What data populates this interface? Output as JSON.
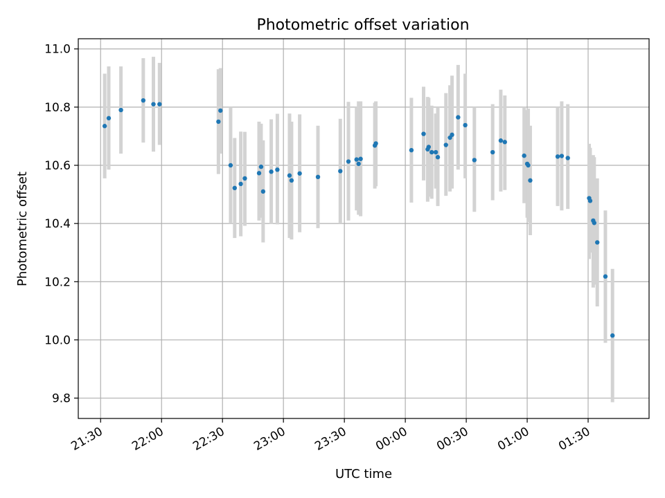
{
  "chart_data": {
    "type": "scatter",
    "title": "Photometric offset variation",
    "xlabel": "UTC time",
    "ylabel": "Photometric offset",
    "x_unit": "minutes from 00:00 UTC (negative = previous day)",
    "xlim": [
      -161,
      120
    ],
    "ylim": [
      9.73,
      11.035
    ],
    "grid": true,
    "legend": "none",
    "x_ticks": [
      {
        "value": -150,
        "label": "21:30"
      },
      {
        "value": -120,
        "label": "22:00"
      },
      {
        "value": -90,
        "label": "22:30"
      },
      {
        "value": -60,
        "label": "23:00"
      },
      {
        "value": -30,
        "label": "23:30"
      },
      {
        "value": 0,
        "label": "00:00"
      },
      {
        "value": 30,
        "label": "00:30"
      },
      {
        "value": 60,
        "label": "01:00"
      },
      {
        "value": 90,
        "label": "01:30"
      }
    ],
    "y_ticks": [
      {
        "value": 9.8,
        "label": "9.8"
      },
      {
        "value": 10.0,
        "label": "10.0"
      },
      {
        "value": 10.2,
        "label": "10.2"
      },
      {
        "value": 10.4,
        "label": "10.4"
      },
      {
        "value": 10.6,
        "label": "10.6"
      },
      {
        "value": 10.8,
        "label": "10.8"
      },
      {
        "value": 11.0,
        "label": "11.0"
      }
    ],
    "colors": {
      "point": "#1f77b4",
      "errorbar": "#d3d3d3",
      "grid": "#b0b0b0"
    },
    "series": [
      {
        "points": [
          {
            "x": -148,
            "y": 10.735,
            "lo": 10.555,
            "hi": 10.915
          },
          {
            "x": -146,
            "y": 10.762,
            "lo": 10.585,
            "hi": 10.94
          },
          {
            "x": -140,
            "y": 10.79,
            "lo": 10.64,
            "hi": 10.94
          },
          {
            "x": -129,
            "y": 10.823,
            "lo": 10.678,
            "hi": 10.968
          },
          {
            "x": -124,
            "y": 10.81,
            "lo": 10.647,
            "hi": 10.973
          },
          {
            "x": -121,
            "y": 10.81,
            "lo": 10.67,
            "hi": 10.952
          },
          {
            "x": -92,
            "y": 10.75,
            "lo": 10.57,
            "hi": 10.93
          },
          {
            "x": -91,
            "y": 10.788,
            "lo": 10.64,
            "hi": 10.934
          },
          {
            "x": -86,
            "y": 10.6,
            "lo": 10.4,
            "hi": 10.8
          },
          {
            "x": -84,
            "y": 10.522,
            "lo": 10.35,
            "hi": 10.694
          },
          {
            "x": -81,
            "y": 10.536,
            "lo": 10.356,
            "hi": 10.716
          },
          {
            "x": -79,
            "y": 10.555,
            "lo": 10.392,
            "hi": 10.715
          },
          {
            "x": -72,
            "y": 10.573,
            "lo": 10.41,
            "hi": 10.75
          },
          {
            "x": -71,
            "y": 10.595,
            "lo": 10.42,
            "hi": 10.743
          },
          {
            "x": -70,
            "y": 10.51,
            "lo": 10.335,
            "hi": 10.686
          },
          {
            "x": -66,
            "y": 10.578,
            "lo": 10.398,
            "hi": 10.758
          },
          {
            "x": -63,
            "y": 10.585,
            "lo": 10.397,
            "hi": 10.777
          },
          {
            "x": -57,
            "y": 10.565,
            "lo": 10.35,
            "hi": 10.778
          },
          {
            "x": -56,
            "y": 10.548,
            "lo": 10.345,
            "hi": 10.75
          },
          {
            "x": -52,
            "y": 10.572,
            "lo": 10.37,
            "hi": 10.775
          },
          {
            "x": -43,
            "y": 10.56,
            "lo": 10.384,
            "hi": 10.736
          },
          {
            "x": -32,
            "y": 10.58,
            "lo": 10.4,
            "hi": 10.76
          },
          {
            "x": -28,
            "y": 10.613,
            "lo": 10.41,
            "hi": 10.818
          },
          {
            "x": -24,
            "y": 10.62,
            "lo": 10.445,
            "hi": 10.8
          },
          {
            "x": -23,
            "y": 10.605,
            "lo": 10.43,
            "hi": 10.82
          },
          {
            "x": -22,
            "y": 10.622,
            "lo": 10.425,
            "hi": 10.82
          },
          {
            "x": -15,
            "y": 10.668,
            "lo": 10.52,
            "hi": 10.815
          },
          {
            "x": -14.5,
            "y": 10.675,
            "lo": 10.528,
            "hi": 10.82
          },
          {
            "x": 3,
            "y": 10.652,
            "lo": 10.472,
            "hi": 10.832
          },
          {
            "x": 9,
            "y": 10.708,
            "lo": 10.548,
            "hi": 10.87
          },
          {
            "x": 11,
            "y": 10.655,
            "lo": 10.475,
            "hi": 10.835
          },
          {
            "x": 11.5,
            "y": 10.663,
            "lo": 10.492,
            "hi": 10.832
          },
          {
            "x": 13,
            "y": 10.645,
            "lo": 10.485,
            "hi": 10.805
          },
          {
            "x": 15,
            "y": 10.645,
            "lo": 10.52,
            "hi": 10.778
          },
          {
            "x": 16,
            "y": 10.628,
            "lo": 10.46,
            "hi": 10.8
          },
          {
            "x": 20,
            "y": 10.67,
            "lo": 10.495,
            "hi": 10.848
          },
          {
            "x": 22,
            "y": 10.695,
            "lo": 10.51,
            "hi": 10.875
          },
          {
            "x": 23,
            "y": 10.705,
            "lo": 10.52,
            "hi": 10.908
          },
          {
            "x": 26,
            "y": 10.765,
            "lo": 10.585,
            "hi": 10.945
          },
          {
            "x": 29.5,
            "y": 10.738,
            "lo": 10.555,
            "hi": 10.915
          },
          {
            "x": 34,
            "y": 10.618,
            "lo": 10.44,
            "hi": 10.8
          },
          {
            "x": 43,
            "y": 10.645,
            "lo": 10.48,
            "hi": 10.81
          },
          {
            "x": 47,
            "y": 10.685,
            "lo": 10.51,
            "hi": 10.86
          },
          {
            "x": 49,
            "y": 10.68,
            "lo": 10.515,
            "hi": 10.84
          },
          {
            "x": 58.5,
            "y": 10.633,
            "lo": 10.47,
            "hi": 10.8
          },
          {
            "x": 60,
            "y": 10.605,
            "lo": 10.42,
            "hi": 10.79
          },
          {
            "x": 60.5,
            "y": 10.6,
            "lo": 10.405,
            "hi": 10.795
          },
          {
            "x": 61.5,
            "y": 10.548,
            "lo": 10.36,
            "hi": 10.736
          },
          {
            "x": 75,
            "y": 10.63,
            "lo": 10.46,
            "hi": 10.8
          },
          {
            "x": 77,
            "y": 10.632,
            "lo": 10.445,
            "hi": 10.82
          },
          {
            "x": 80,
            "y": 10.625,
            "lo": 10.45,
            "hi": 10.81
          },
          {
            "x": 90.5,
            "y": 10.487,
            "lo": 10.278,
            "hi": 10.674
          },
          {
            "x": 91,
            "y": 10.478,
            "lo": 10.3,
            "hi": 10.66
          },
          {
            "x": 92.5,
            "y": 10.41,
            "lo": 10.18,
            "hi": 10.635
          },
          {
            "x": 93,
            "y": 10.402,
            "lo": 10.19,
            "hi": 10.628
          },
          {
            "x": 94.5,
            "y": 10.335,
            "lo": 10.115,
            "hi": 10.555
          },
          {
            "x": 98.5,
            "y": 10.218,
            "lo": 9.99,
            "hi": 10.445
          },
          {
            "x": 102,
            "y": 10.015,
            "lo": 9.786,
            "hi": 10.244
          }
        ]
      }
    ]
  }
}
